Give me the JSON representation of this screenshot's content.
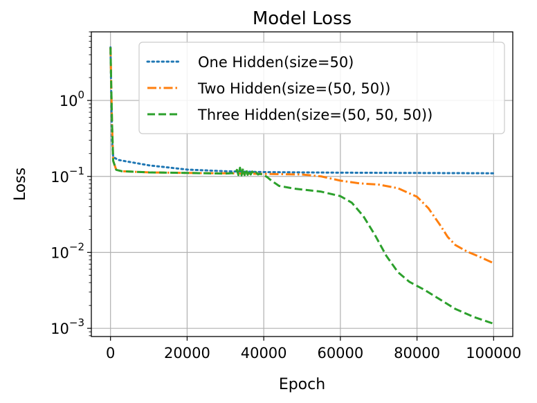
{
  "chart_data": {
    "type": "line",
    "title": "Model Loss",
    "xlabel": "Epoch",
    "ylabel": "Loss",
    "yscale": "log",
    "xlim": [
      -5000,
      105000
    ],
    "ylim": [
      0.00078,
      8.0
    ],
    "xticks": [
      0,
      20000,
      40000,
      60000,
      80000,
      100000
    ],
    "xtick_labels": [
      "0",
      "20000",
      "40000",
      "60000",
      "80000",
      "100000"
    ],
    "yticks": [
      {
        "value": 1,
        "base": "10",
        "exp": "0"
      },
      {
        "value": 0.1,
        "base": "10",
        "exp": "−1"
      },
      {
        "value": 0.01,
        "base": "10",
        "exp": "−2"
      },
      {
        "value": 0.001,
        "base": "10",
        "exp": "−3"
      }
    ],
    "grid": true,
    "legend_position": "upper right",
    "series": [
      {
        "name": "One Hidden(size=50)",
        "color": "#1f77b4",
        "style": "dotted",
        "points": [
          [
            0,
            5.0
          ],
          [
            200,
            1.2
          ],
          [
            400,
            0.3
          ],
          [
            700,
            0.18
          ],
          [
            2000,
            0.165
          ],
          [
            5000,
            0.155
          ],
          [
            10000,
            0.14
          ],
          [
            20000,
            0.123
          ],
          [
            30000,
            0.117
          ],
          [
            40000,
            0.114
          ],
          [
            60000,
            0.112
          ],
          [
            80000,
            0.111
          ],
          [
            100000,
            0.11
          ]
        ]
      },
      {
        "name": "Two Hidden(size=(50, 50))",
        "color": "#ff7f0e",
        "style": "dashdot",
        "points": [
          [
            0,
            5.0
          ],
          [
            200,
            1.5
          ],
          [
            400,
            0.5
          ],
          [
            700,
            0.16
          ],
          [
            1500,
            0.122
          ],
          [
            3000,
            0.117
          ],
          [
            10000,
            0.113
          ],
          [
            20000,
            0.111
          ],
          [
            30000,
            0.11
          ],
          [
            40000,
            0.108
          ],
          [
            50000,
            0.106
          ],
          [
            55000,
            0.1
          ],
          [
            60000,
            0.088
          ],
          [
            65000,
            0.081
          ],
          [
            70000,
            0.078
          ],
          [
            75000,
            0.07
          ],
          [
            80000,
            0.054
          ],
          [
            83000,
            0.038
          ],
          [
            86000,
            0.023
          ],
          [
            88000,
            0.016
          ],
          [
            90000,
            0.0125
          ],
          [
            93000,
            0.0103
          ],
          [
            96000,
            0.0089
          ],
          [
            100000,
            0.0072
          ]
        ]
      },
      {
        "name": "Three Hidden(size=(50, 50, 50))",
        "color": "#2ca02c",
        "style": "dashed",
        "points": [
          [
            0,
            5.0
          ],
          [
            200,
            1.5
          ],
          [
            400,
            0.5
          ],
          [
            700,
            0.16
          ],
          [
            1500,
            0.122
          ],
          [
            3000,
            0.117
          ],
          [
            10000,
            0.113
          ],
          [
            20000,
            0.111
          ],
          [
            30000,
            0.109
          ],
          [
            32500,
            0.111
          ],
          [
            33000,
            0.122
          ],
          [
            33400,
            0.104
          ],
          [
            33800,
            0.13
          ],
          [
            34200,
            0.103
          ],
          [
            34600,
            0.128
          ],
          [
            35000,
            0.104
          ],
          [
            35400,
            0.124
          ],
          [
            35800,
            0.105
          ],
          [
            36200,
            0.12
          ],
          [
            36600,
            0.106
          ],
          [
            37000,
            0.116
          ],
          [
            37500,
            0.107
          ],
          [
            38000,
            0.113
          ],
          [
            38500,
            0.106
          ],
          [
            39000,
            0.108
          ],
          [
            40000,
            0.105
          ],
          [
            41000,
            0.097
          ],
          [
            42000,
            0.088
          ],
          [
            44000,
            0.075
          ],
          [
            48000,
            0.069
          ],
          [
            55000,
            0.063
          ],
          [
            60000,
            0.055
          ],
          [
            63000,
            0.045
          ],
          [
            66000,
            0.03
          ],
          [
            69000,
            0.017
          ],
          [
            72000,
            0.009
          ],
          [
            75000,
            0.0055
          ],
          [
            78000,
            0.0041
          ],
          [
            82000,
            0.0032
          ],
          [
            86000,
            0.0024
          ],
          [
            90000,
            0.0018
          ],
          [
            95000,
            0.0014
          ],
          [
            100000,
            0.00115
          ]
        ]
      }
    ]
  }
}
